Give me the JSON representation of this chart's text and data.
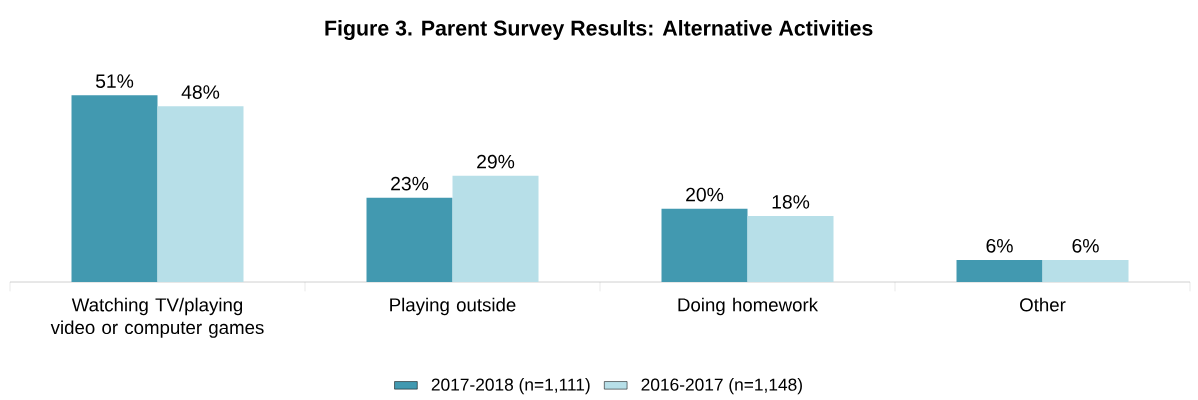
{
  "chart_data": {
    "type": "bar",
    "title": "Figure 3. Parent Survey Results: Alternative Activities",
    "categories": [
      "Watching TV/playing video or computer games",
      "Playing outside",
      "Doing homework",
      "Other"
    ],
    "legend": "bottom",
    "series": [
      {
        "name": "2017-2018 (n=1,111)",
        "color": "#4299b0",
        "values": [
          51,
          23,
          20,
          6
        ],
        "value_labels": [
          "51%",
          "23%",
          "20%",
          "6%"
        ]
      },
      {
        "name": "2016-2017 (n=1,148)",
        "color": "#b7dfe8",
        "values": [
          48,
          29,
          18,
          6
        ],
        "value_labels": [
          "48%",
          "29%",
          "18%",
          "6%"
        ]
      }
    ]
  }
}
